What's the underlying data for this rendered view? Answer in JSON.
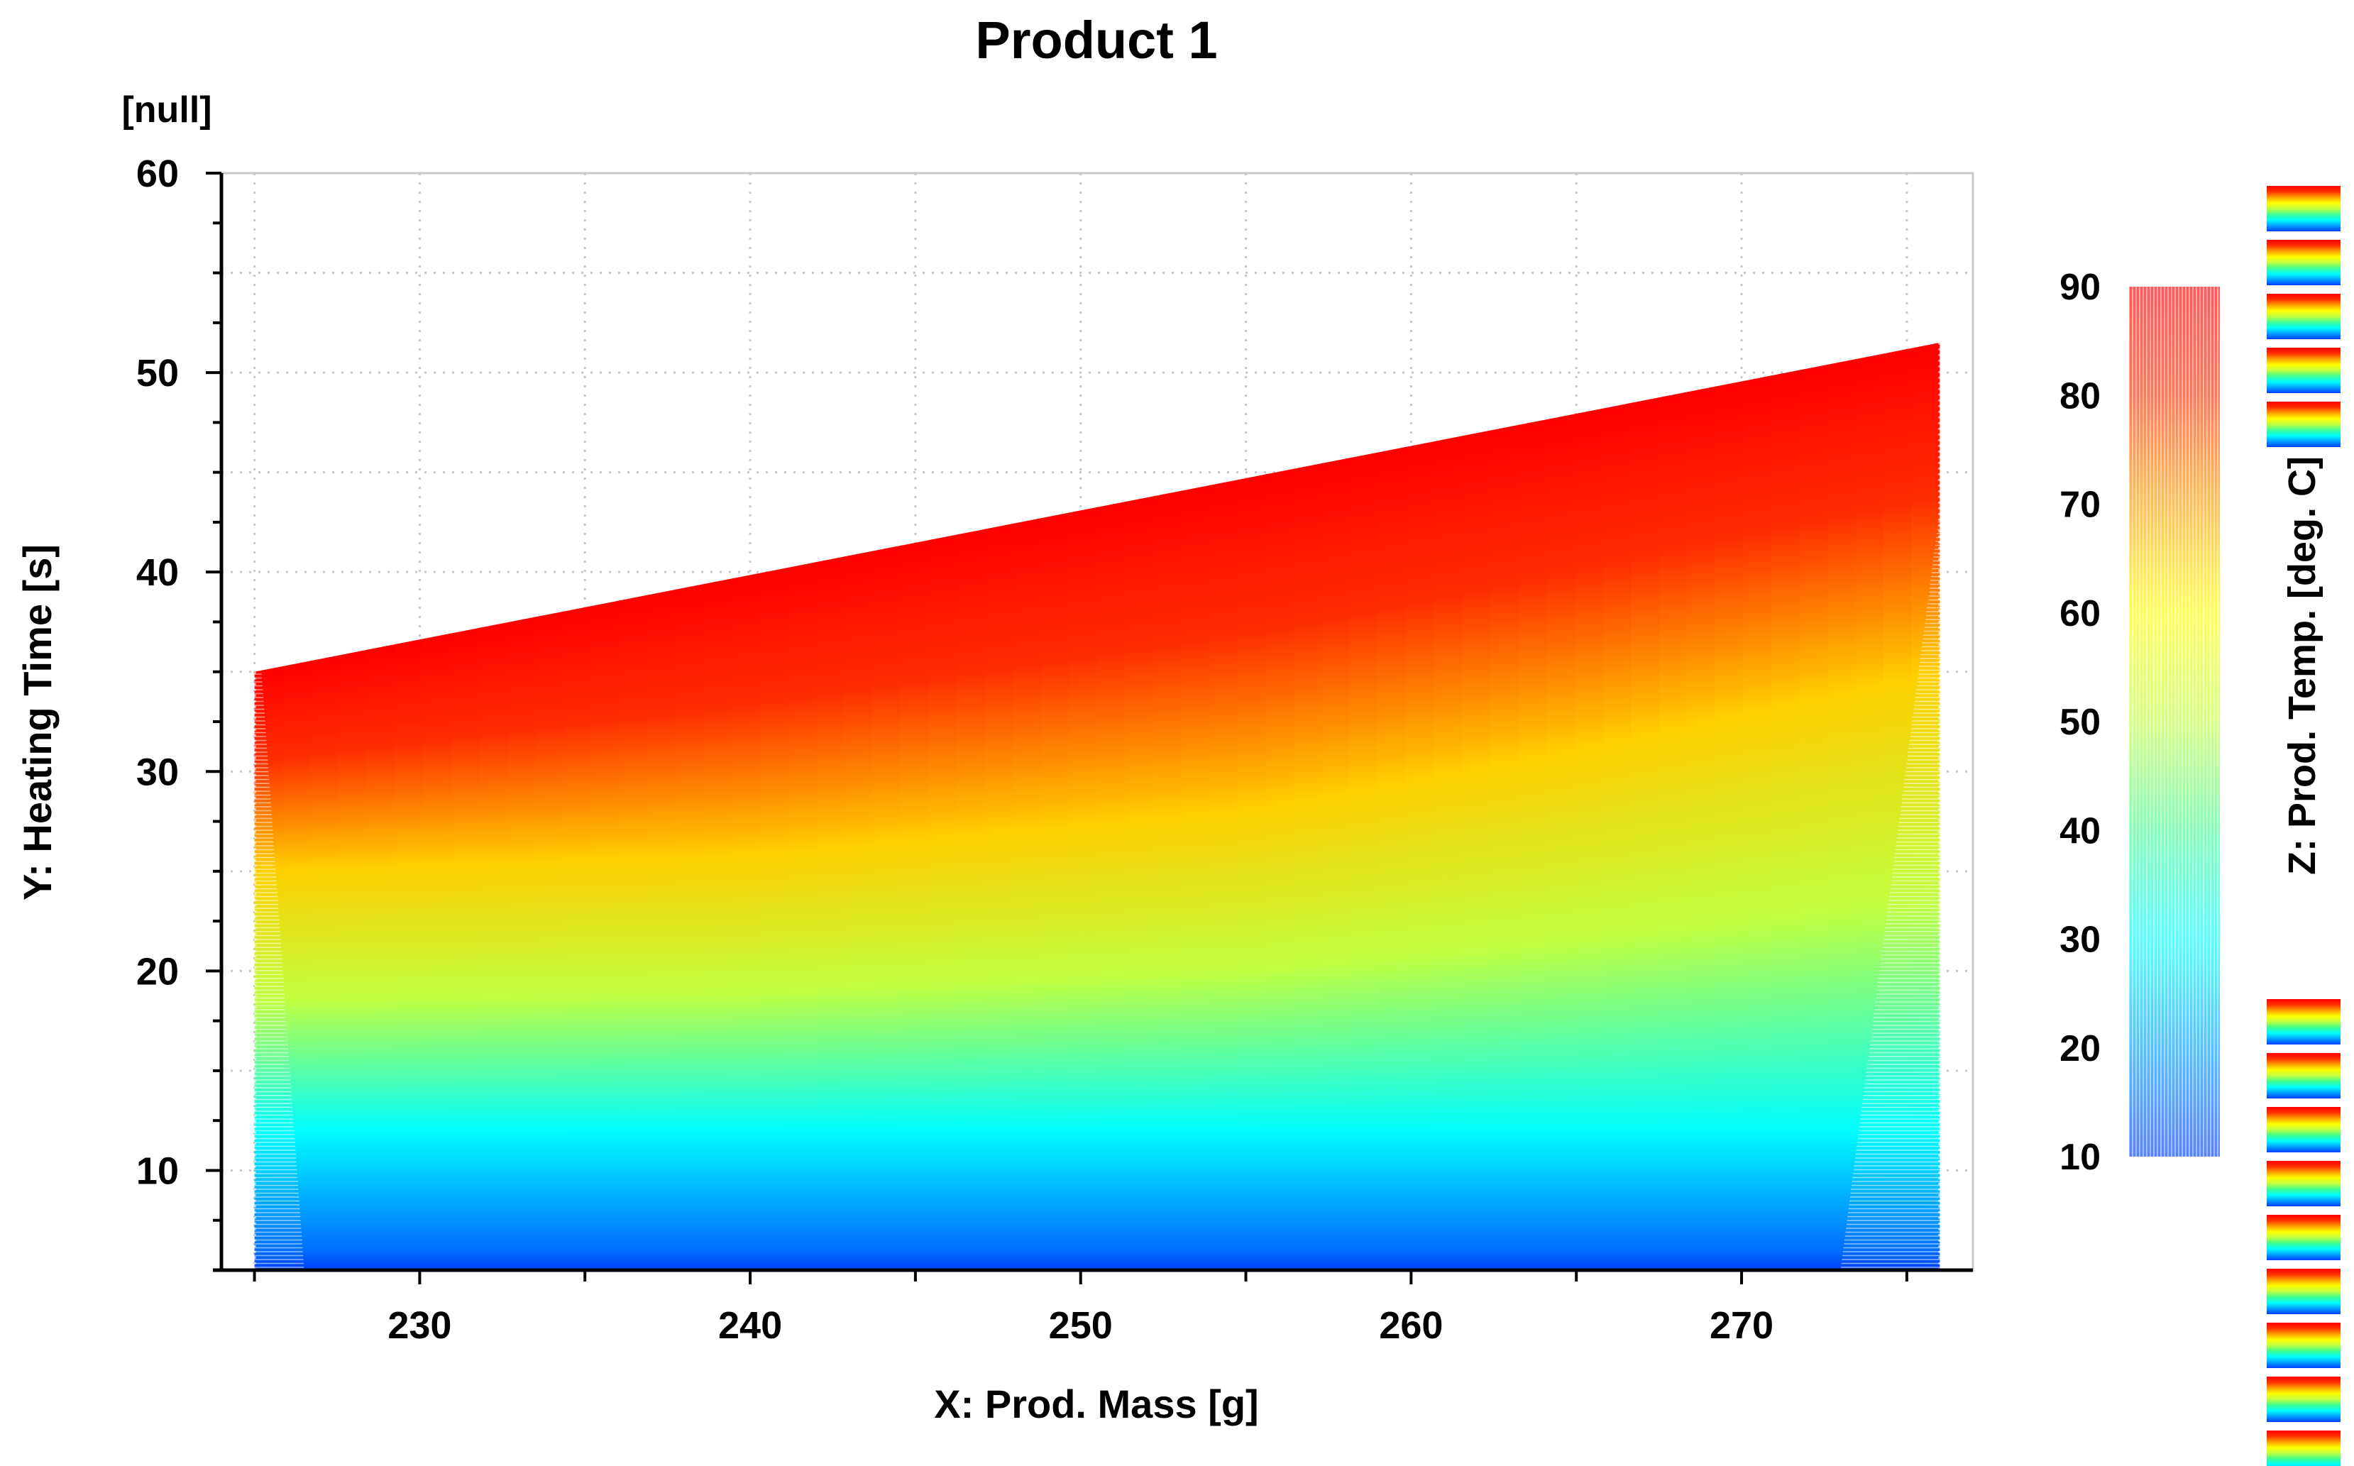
{
  "chart_data": {
    "type": "heatmap",
    "title": "Product 1",
    "xlabel": "X: Prod. Mass [g]",
    "ylabel": "Y: Heating Time [s]",
    "zlabel": "Z: Prod. Temp. [deg. C]",
    "y_unit_label": "[null]",
    "xlim": [
      224,
      277
    ],
    "ylim": [
      5,
      60
    ],
    "x_ticks": [
      230,
      240,
      250,
      260,
      270
    ],
    "y_ticks": [
      10,
      20,
      30,
      40,
      50,
      60
    ],
    "colorbar_ticks": [
      10,
      20,
      30,
      40,
      50,
      60,
      70,
      80,
      90
    ],
    "zlim": [
      10,
      90
    ],
    "grid": true,
    "colormap": [
      "#0040ff",
      "#00a0ff",
      "#00ffff",
      "#40ff90",
      "#c0ff40",
      "#ffff00",
      "#ffa000",
      "#ff3000",
      "#ff0000"
    ],
    "domain": {
      "x": [
        225,
        276
      ],
      "y_bottom": 5,
      "y_top_at_x_min": 35,
      "y_top_at_x_max": 51.5
    },
    "isotherms": [
      {
        "z": 10,
        "points": [
          [
            225,
            5.5
          ],
          [
            276,
            5.5
          ]
        ]
      },
      {
        "z": 30,
        "points": [
          [
            225,
            12
          ],
          [
            276,
            12
          ]
        ]
      },
      {
        "z": 65,
        "points": [
          [
            225,
            25
          ],
          [
            240,
            25.8
          ],
          [
            255,
            28
          ],
          [
            265,
            31
          ],
          [
            276,
            35
          ]
        ]
      },
      {
        "z": 90,
        "points": [
          [
            225,
            35
          ],
          [
            276,
            51.5
          ]
        ]
      }
    ]
  }
}
